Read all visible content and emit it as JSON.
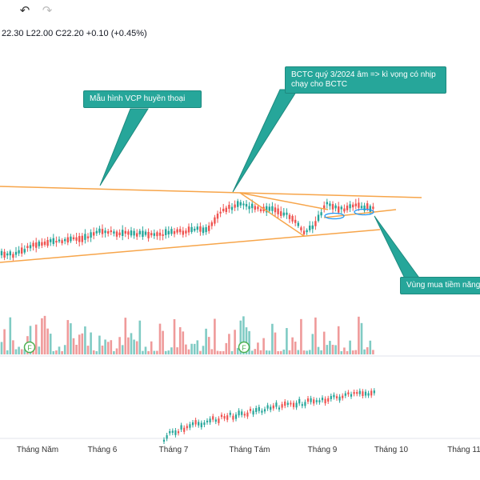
{
  "toolbar": {
    "undo_icon": "undo-arrow-icon",
    "redo_icon": "redo-arrow-icon"
  },
  "ohlc": {
    "text": "22.30 L22.00 C22.20 +0.10 (+0.45%)"
  },
  "annotations": {
    "vcp": "Mẫu hình VCP huyền thoại",
    "bctc": "BCTC quý 3/2024 âm => kì vọng có nhịp chạy cho BCTC",
    "buy_zone": "Vùng mua tiềm năng"
  },
  "markers": {
    "letter": "F"
  },
  "x_axis": {
    "labels": [
      "Tháng Năm",
      "Tháng 6",
      "Tháng 7",
      "Tháng Tám",
      "Tháng 9",
      "Tháng 10",
      "Tháng 11"
    ]
  },
  "colors": {
    "up": "#26a69a",
    "down": "#ef5350",
    "vol_up": "#80cbc4",
    "vol_down": "#ef9a9a",
    "trend": "#f7a54a",
    "callout": "#26a69a"
  },
  "chart_data": {
    "type": "candlestick",
    "price_scale": "not visible (cropped)",
    "last_bar": {
      "low": 22.0,
      "close": 22.2,
      "change": 0.1,
      "change_pct": 0.45
    }
  }
}
